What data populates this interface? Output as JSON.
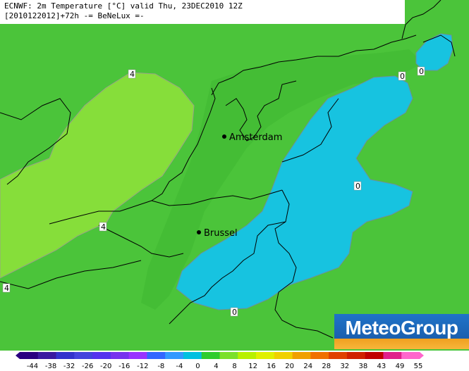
{
  "header": {
    "line1": "ECNWF: 2m Temperature [°C] valid Thu, 23DEC2010 12Z",
    "line2": "[2010122012]+72h -= BeNeLux =-"
  },
  "cities": [
    {
      "name": "Amsterdam"
    },
    {
      "name": "Brussel"
    }
  ],
  "contour_labels": [
    "4",
    "4",
    "4",
    "0",
    "0",
    "0",
    "0"
  ],
  "logo": {
    "text": "MeteoGroup"
  },
  "legend": {
    "ticks": [
      "-44",
      "-38",
      "-32",
      "-26",
      "-20",
      "-16",
      "-12",
      "-8",
      "-4",
      "0",
      "4",
      "8",
      "12",
      "16",
      "20",
      "24",
      "28",
      "32",
      "38",
      "43",
      "49",
      "55"
    ],
    "colors": [
      "#2a0080",
      "#3a1aa0",
      "#3333cc",
      "#4444dd",
      "#5533ee",
      "#7733ee",
      "#9933ff",
      "#3366ff",
      "#3399ff",
      "#00c0e0",
      "#2ecc2e",
      "#7be02a",
      "#b8f000",
      "#e0f000",
      "#f0d000",
      "#f0a000",
      "#f07000",
      "#e04000",
      "#d02000",
      "#c00000",
      "#e0208a",
      "#ff66cc"
    ],
    "colors_note_hidden": true
  },
  "colors": {
    "green": "#4ec23a",
    "light_green": "#86de3a",
    "cyan": "#17c3e0",
    "background_header": "#ffffff"
  }
}
